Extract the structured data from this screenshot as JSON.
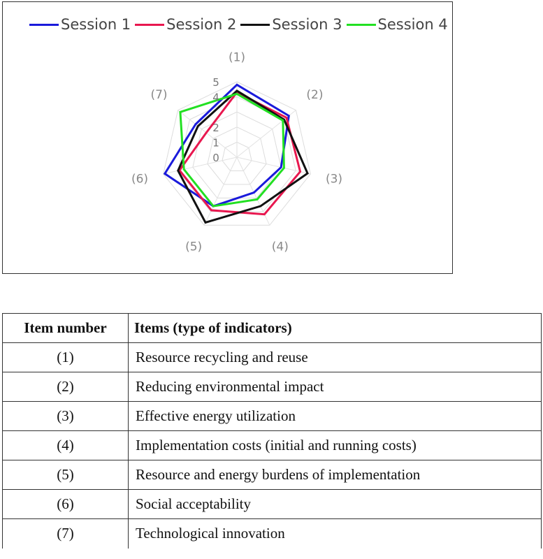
{
  "chart_data": {
    "type": "radar",
    "axes": [
      "(1)",
      "(2)",
      "(3)",
      "(4)",
      "(5)",
      "(6)",
      "(7)"
    ],
    "ticks": [
      "0",
      "1",
      "2",
      "4",
      "5"
    ],
    "range": [
      0,
      5
    ],
    "series": [
      {
        "name": "Session 1",
        "color": "#1a1adb",
        "values": [
          4.8,
          4.4,
          3.0,
          2.6,
          3.6,
          4.9,
          3.5
        ]
      },
      {
        "name": "Session 2",
        "color": "#e8174f",
        "values": [
          4.3,
          4.2,
          4.3,
          4.2,
          3.9,
          3.9,
          2.6
        ]
      },
      {
        "name": "Session 3",
        "color": "#111111",
        "values": [
          4.4,
          4.0,
          4.8,
          3.6,
          4.8,
          4.0,
          3.3
        ]
      },
      {
        "name": "Session 4",
        "color": "#22e022",
        "values": [
          4.2,
          3.9,
          3.2,
          3.1,
          3.6,
          3.6,
          4.8
        ]
      }
    ],
    "legend_position": "top"
  },
  "table": {
    "headers": [
      "Item number",
      "Items (type of indicators)"
    ],
    "rows": [
      {
        "num": "(1)",
        "item": "Resource recycling and reuse"
      },
      {
        "num": "(2)",
        "item": "Reducing environmental  impact"
      },
      {
        "num": "(3)",
        "item": "Effective energy utilization"
      },
      {
        "num": "(4)",
        "item": "Implementation  costs (initial  and running costs)"
      },
      {
        "num": "(5)",
        "item": "Resource and energy burdens of implementation"
      },
      {
        "num": "(6)",
        "item": "Social acceptability"
      },
      {
        "num": "(7)",
        "item": "Technological innovation"
      }
    ]
  }
}
